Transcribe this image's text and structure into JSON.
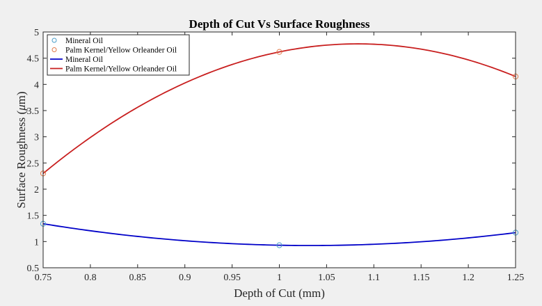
{
  "chart_data": {
    "type": "line",
    "title": "Depth of Cut Vs Surface Roughness",
    "xlabel": "Depth of Cut (mm)",
    "ylabel_prefix": "Surface Roughness (",
    "ylabel_mu": "μ",
    "ylabel_suffix": "m)",
    "xlim": [
      0.75,
      1.25
    ],
    "ylim": [
      0.5,
      5
    ],
    "xticks": [
      0.75,
      0.8,
      0.85,
      0.9,
      0.95,
      1,
      1.05,
      1.1,
      1.15,
      1.2,
      1.25
    ],
    "xtick_labels": [
      "0.75",
      "0.8",
      "0.85",
      "0.9",
      "0.95",
      "1",
      "1.05",
      "1.1",
      "1.15",
      "1.2",
      "1.25"
    ],
    "yticks": [
      0.5,
      1,
      1.5,
      2,
      2.5,
      3,
      3.5,
      4,
      4.5,
      5
    ],
    "ytick_labels": [
      "0.5",
      "1",
      "1.5",
      "2",
      "2.5",
      "3",
      "3.5",
      "4",
      "4.5",
      "5"
    ],
    "grid": false,
    "legend_position": "top-left",
    "series": [
      {
        "name": "Mineral Oil",
        "kind": "markers",
        "marker": "circle",
        "color": "#4a9ec9",
        "x": [
          0.75,
          1.0,
          1.25
        ],
        "y": [
          1.34,
          0.93,
          1.17
        ]
      },
      {
        "name": "Palm Kernel/Yellow Orleander Oil",
        "kind": "markers",
        "marker": "circle",
        "color": "#e07a4a",
        "x": [
          0.75,
          1.0,
          1.25
        ],
        "y": [
          2.3,
          4.62,
          4.15
        ]
      },
      {
        "name": "Mineral Oil",
        "kind": "fit-line",
        "color": "#0000c8",
        "x": [
          0.75,
          1.0,
          1.25
        ],
        "y": [
          1.34,
          0.93,
          1.17
        ]
      },
      {
        "name": "Palm Kernel/Yellow Orleander Oil",
        "kind": "fit-line",
        "color": "#c81e1e",
        "x": [
          0.75,
          1.0,
          1.25
        ],
        "y": [
          2.3,
          4.62,
          4.15
        ]
      }
    ]
  }
}
